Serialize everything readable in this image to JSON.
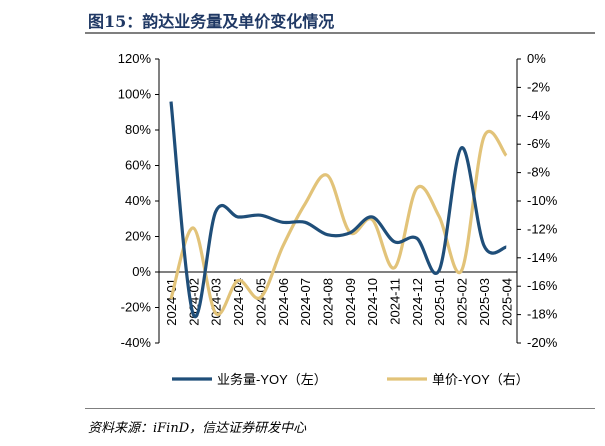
{
  "title": "图15：韵达业务量及单价变化情况",
  "source": "资料来源：iFinD，信达证券研发中心",
  "chart_data": {
    "type": "line",
    "categories": [
      "2024-01",
      "2024-02",
      "2024-03",
      "2024-04",
      "2024-05",
      "2024-06",
      "2024-07",
      "2024-08",
      "2024-09",
      "2024-10",
      "2024-11",
      "2024-12",
      "2025-01",
      "2025-02",
      "2025-03",
      "2025-04"
    ],
    "series": [
      {
        "name": "业务量-YOY（左）",
        "axis": "left",
        "color": "#1f4e79",
        "values": [
          96,
          -24,
          34,
          31,
          32,
          28,
          28,
          21,
          22,
          31,
          17,
          19,
          1,
          70,
          15,
          14
        ]
      },
      {
        "name": "单价-YOY（右）",
        "axis": "right",
        "color": "#e2c379",
        "values": [
          -16.9,
          -11.9,
          -17.9,
          -15.6,
          -16.8,
          -13.2,
          -10.2,
          -8.2,
          -12.2,
          -11.3,
          -14.7,
          -9.1,
          -11.1,
          -14.9,
          -5.5,
          -6.8
        ]
      }
    ],
    "ylim_left": [
      -40,
      120
    ],
    "yticks_left": [
      "120%",
      "100%",
      "80%",
      "60%",
      "40%",
      "20%",
      "0%",
      "-20%",
      "-40%"
    ],
    "ylim_right": [
      -20,
      0
    ],
    "yticks_right": [
      "0%",
      "-2%",
      "-4%",
      "-6%",
      "-8%",
      "-10%",
      "-12%",
      "-14%",
      "-16%",
      "-18%",
      "-20%"
    ],
    "legend": "bottom",
    "grid": false
  }
}
